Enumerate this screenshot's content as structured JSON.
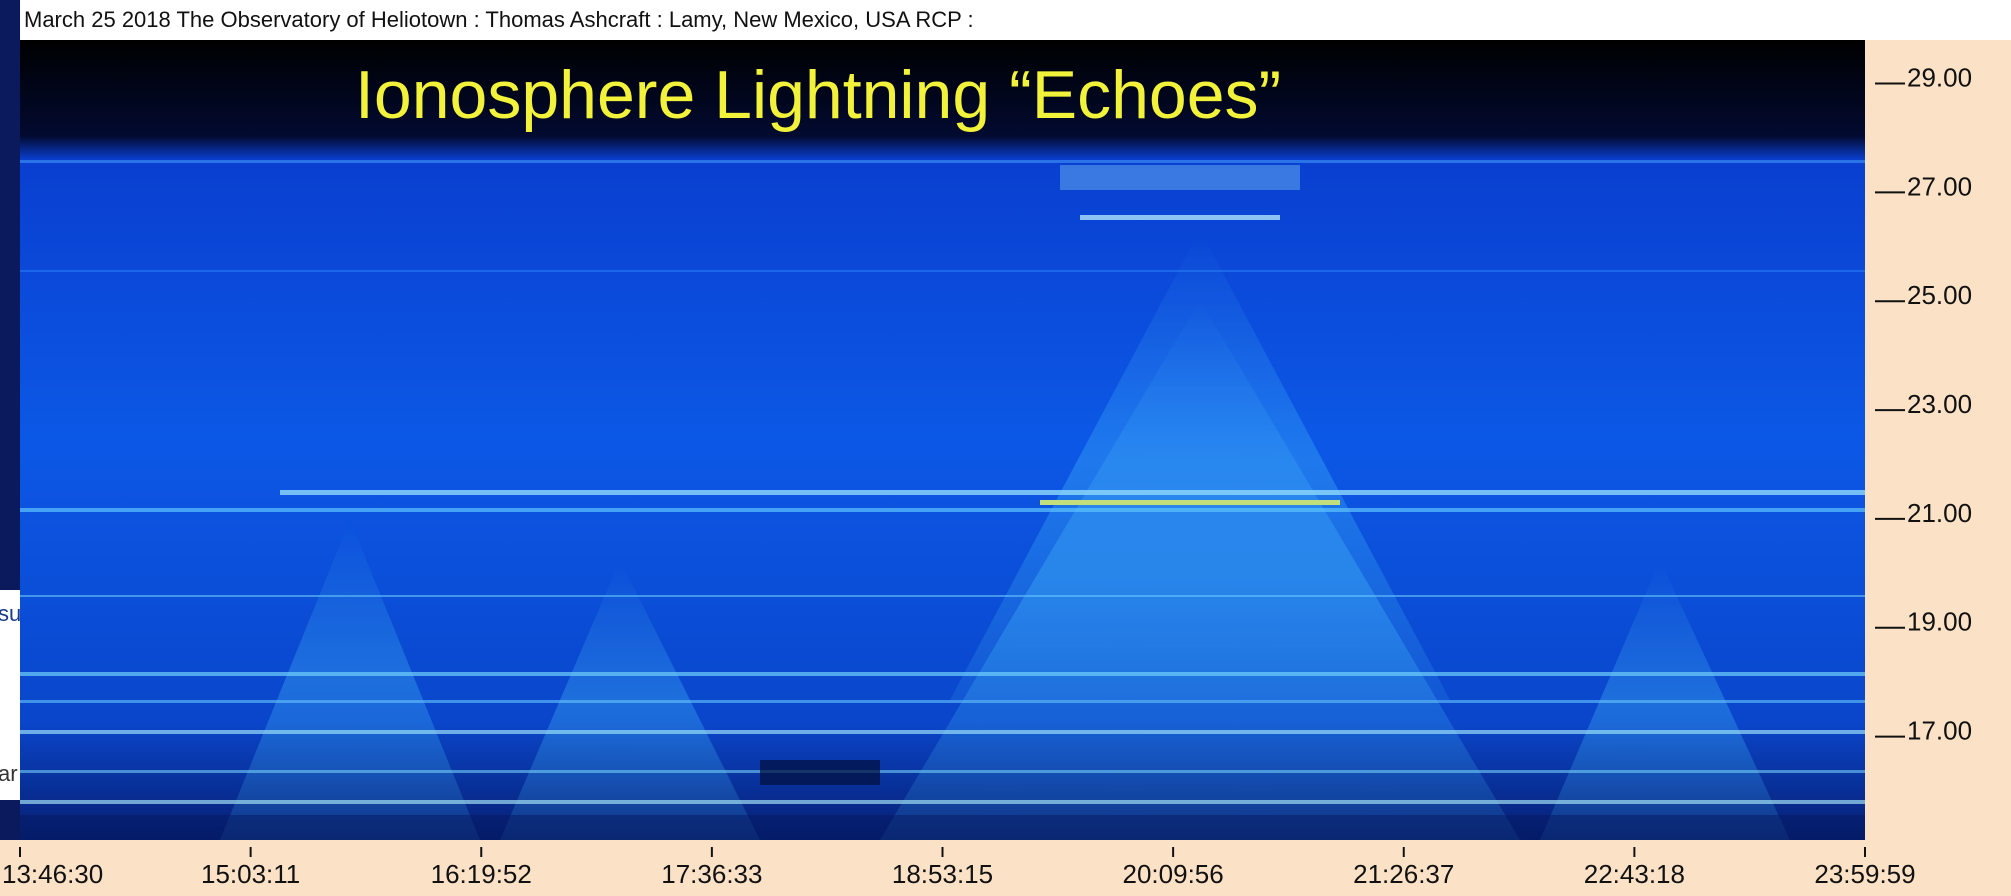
{
  "chart_data": {
    "type": "spectrogram",
    "header": "March 25 2018  The Observatory of Heliotown :  Thomas Ashcraft :  Lamy, New Mexico, USA    RCP :",
    "title": "Ionosphere Lightning “Echoes”",
    "categories": [
      "13:46:30",
      "15:03:11",
      "16:19:52",
      "17:36:33",
      "18:53:15",
      "20:09:56",
      "21:26:37",
      "22:43:18",
      "23:59:59"
    ],
    "ylim": [
      15.1,
      29.8
    ],
    "yticks": [
      {
        "value": 17,
        "label": "17.00"
      },
      {
        "value": 19,
        "label": "19.00"
      },
      {
        "value": 21,
        "label": "21.00"
      },
      {
        "value": 23,
        "label": "23.00"
      },
      {
        "value": 25,
        "label": "25.00"
      },
      {
        "value": 27,
        "label": "27.00"
      },
      {
        "value": 29,
        "label": "29.00"
      }
    ],
    "side_fragments": [
      "su",
      "ar"
    ],
    "title_color": "#f2f23a",
    "axis_color": "#fbe2c6"
  }
}
